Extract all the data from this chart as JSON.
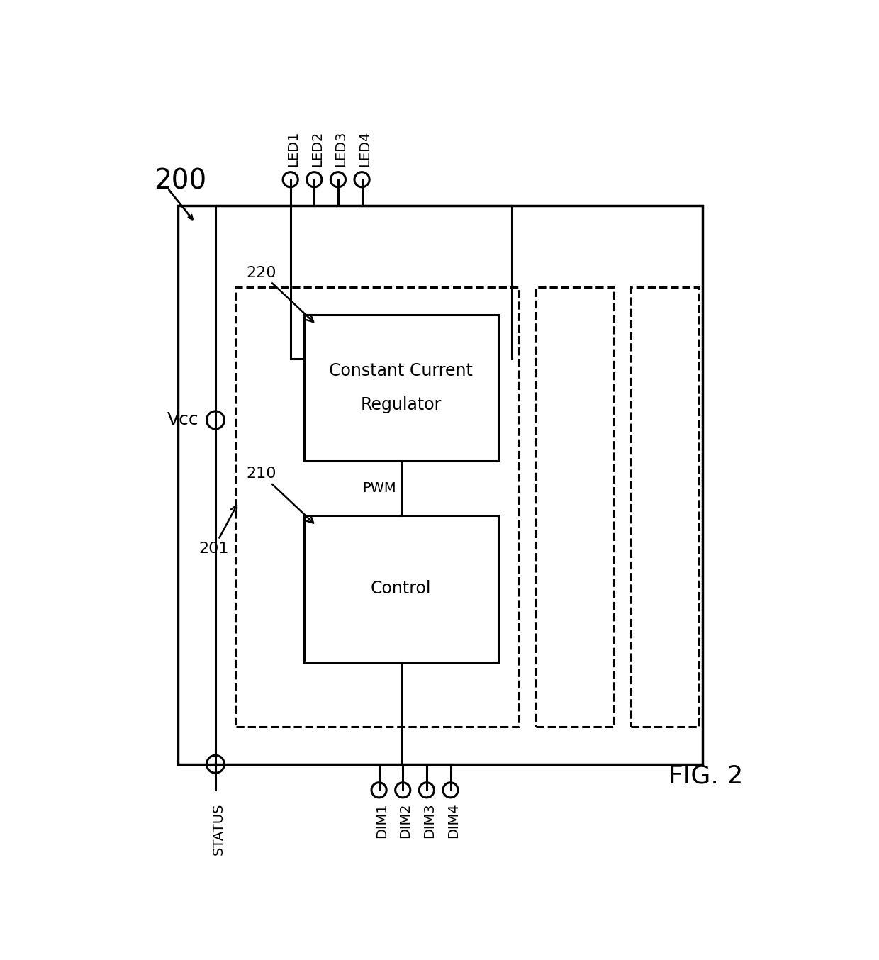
{
  "fig_label": "FIG. 2",
  "ref_200": "200",
  "ref_201": "201",
  "ref_210": "210",
  "ref_220": "220",
  "vcc_label": "Vcc",
  "status_label": "STATUS",
  "pwm_label": "PWM",
  "ccr_label_line1": "Constant Current",
  "ccr_label_line2": "Regulator",
  "ctrl_label": "Control",
  "led_labels": [
    "LED1",
    "LED2",
    "LED3",
    "LED4"
  ],
  "dim_labels": [
    "DIM1",
    "DIM2",
    "DIM3",
    "DIM4"
  ],
  "line_color": "#000000",
  "bg_color": "#ffffff",
  "font_size_label": 18,
  "font_size_ref": 16,
  "font_size_pin": 14,
  "font_size_fig": 26,
  "font_size_box": 17,
  "font_size_200": 28
}
